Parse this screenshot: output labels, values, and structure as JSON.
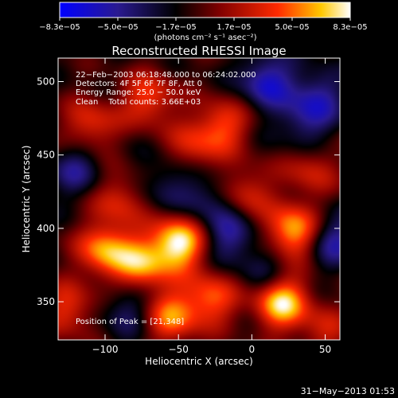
{
  "chart_data": {
    "type": "heatmap",
    "title": "Reconstructed RHESSI Image",
    "xlabel": "Heliocentric X (arcsec)",
    "ylabel": "Heliocentric Y (arcsec)",
    "xlim": [
      -132,
      60
    ],
    "ylim": [
      324,
      516
    ],
    "xticks": [
      -100,
      -50,
      0,
      50
    ],
    "xtick_labels": [
      "−100",
      "−50",
      "0",
      "50"
    ],
    "yticks": [
      350,
      400,
      450,
      500
    ],
    "ytick_labels": [
      "350",
      "400",
      "450",
      "500"
    ],
    "colorbar": {
      "min": -8.3e-05,
      "max": 8.3e-05,
      "tick_labels": [
        "−8.3e−05",
        "−5.0e−05",
        "−1.7e−05",
        "1.7e−05",
        "5.0e−05",
        "8.3e−05"
      ],
      "unit_label": "(photons cm⁻² s⁻¹ asec⁻²)",
      "colormap": "rhessi blue-black-red-yellow-white"
    },
    "annotations": [
      "22−Feb−2003 06:18:48.000 to 06:24:02.000",
      "Detectors: 4F 5F 6F 7F 8F, Att 0",
      "Energy Range: 25.0 − 50.0 keV",
      "Clean    Total counts: 3.66E+03"
    ],
    "peak_label": "Position of Peak = [21,348]",
    "peak_position": [
      21,
      348
    ],
    "sources": [
      {
        "x": -50,
        "y": 390,
        "amp": 1.0
      },
      {
        "x": 20,
        "y": 350,
        "amp": 0.95
      },
      {
        "x": 28,
        "y": 398,
        "amp": 0.85
      },
      {
        "x": -100,
        "y": 385,
        "amp": 0.75
      },
      {
        "x": -75,
        "y": 375,
        "amp": 0.7
      },
      {
        "x": -28,
        "y": 352,
        "amp": 0.6
      },
      {
        "x": -55,
        "y": 340,
        "amp": 0.65
      },
      {
        "x": -70,
        "y": 488,
        "amp": 0.55
      },
      {
        "x": -110,
        "y": 470,
        "amp": 0.5
      },
      {
        "x": -20,
        "y": 470,
        "amp": 0.55
      },
      {
        "x": -90,
        "y": 420,
        "amp": 0.45
      },
      {
        "x": -5,
        "y": 425,
        "amp": 0.45
      },
      {
        "x": 40,
        "y": 440,
        "amp": 0.4
      },
      {
        "x": -40,
        "y": 455,
        "amp": 0.4
      },
      {
        "x": 50,
        "y": 330,
        "amp": 0.35
      },
      {
        "x": -125,
        "y": 345,
        "amp": 0.5
      },
      {
        "x": 10,
        "y": 500,
        "amp": -0.6
      },
      {
        "x": 45,
        "y": 490,
        "amp": -0.45
      },
      {
        "x": -15,
        "y": 395,
        "amp": -0.45
      },
      {
        "x": -120,
        "y": 440,
        "amp": -0.4
      },
      {
        "x": 55,
        "y": 392,
        "amp": -0.5
      },
      {
        "x": -30,
        "y": 420,
        "amp": -0.35
      },
      {
        "x": -85,
        "y": 345,
        "amp": -0.35
      },
      {
        "x": 10,
        "y": 370,
        "amp": -0.3
      },
      {
        "x": 35,
        "y": 470,
        "amp": -0.35
      },
      {
        "x": -60,
        "y": 430,
        "amp": -0.3
      }
    ]
  },
  "footer": {
    "date_stamp": "31−May−2013 01:53"
  }
}
